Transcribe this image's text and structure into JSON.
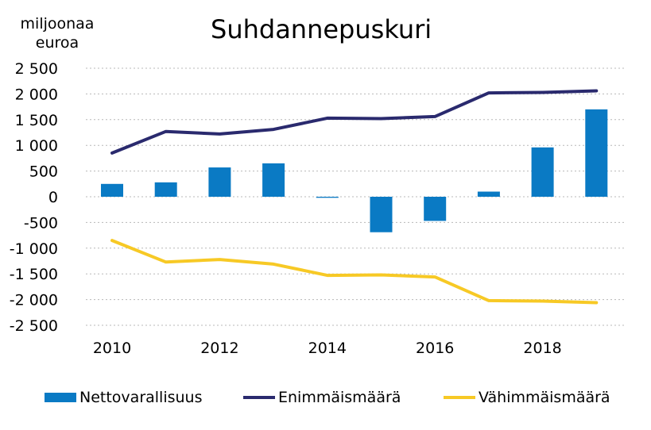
{
  "chart_data": {
    "type": "bar",
    "title": "Suhdannepuskuri",
    "ylabel": "miljoonaa euroa",
    "xlabel": "",
    "x": [
      2010,
      2011,
      2012,
      2013,
      2014,
      2015,
      2016,
      2017,
      2018,
      2019
    ],
    "x_tick_labels": [
      "2010",
      "2012",
      "2014",
      "2016",
      "2018"
    ],
    "x_tick_values": [
      2010,
      2012,
      2014,
      2016,
      2018
    ],
    "ylim": [
      -2500,
      2500
    ],
    "y_ticks": [
      2500,
      2000,
      1500,
      1000,
      500,
      0,
      -500,
      -1000,
      -1500,
      -2000,
      -2500
    ],
    "y_tick_labels": [
      "2 500",
      "2 000",
      "1 500",
      "1 000",
      "500",
      "0",
      "-500",
      "-1 000",
      "-1 500",
      "-2 000",
      "-2 500"
    ],
    "grid": "horizontal dotted",
    "legend_position": "bottom",
    "series": [
      {
        "name": "Nettovarallisuus",
        "kind": "bar",
        "color": "#0a7ac4",
        "values": [
          250,
          280,
          570,
          650,
          -20,
          -690,
          -470,
          100,
          960,
          1700
        ]
      },
      {
        "name": "Enimmäismäärä",
        "kind": "line",
        "color": "#2a2a6e",
        "values": [
          850,
          1270,
          1220,
          1310,
          1530,
          1520,
          1560,
          2020,
          2030,
          2060
        ]
      },
      {
        "name": "Vähimmäismäärä",
        "kind": "line",
        "color": "#f7c925",
        "values": [
          -850,
          -1270,
          -1220,
          -1310,
          -1530,
          -1520,
          -1560,
          -2020,
          -2030,
          -2060
        ]
      }
    ]
  }
}
